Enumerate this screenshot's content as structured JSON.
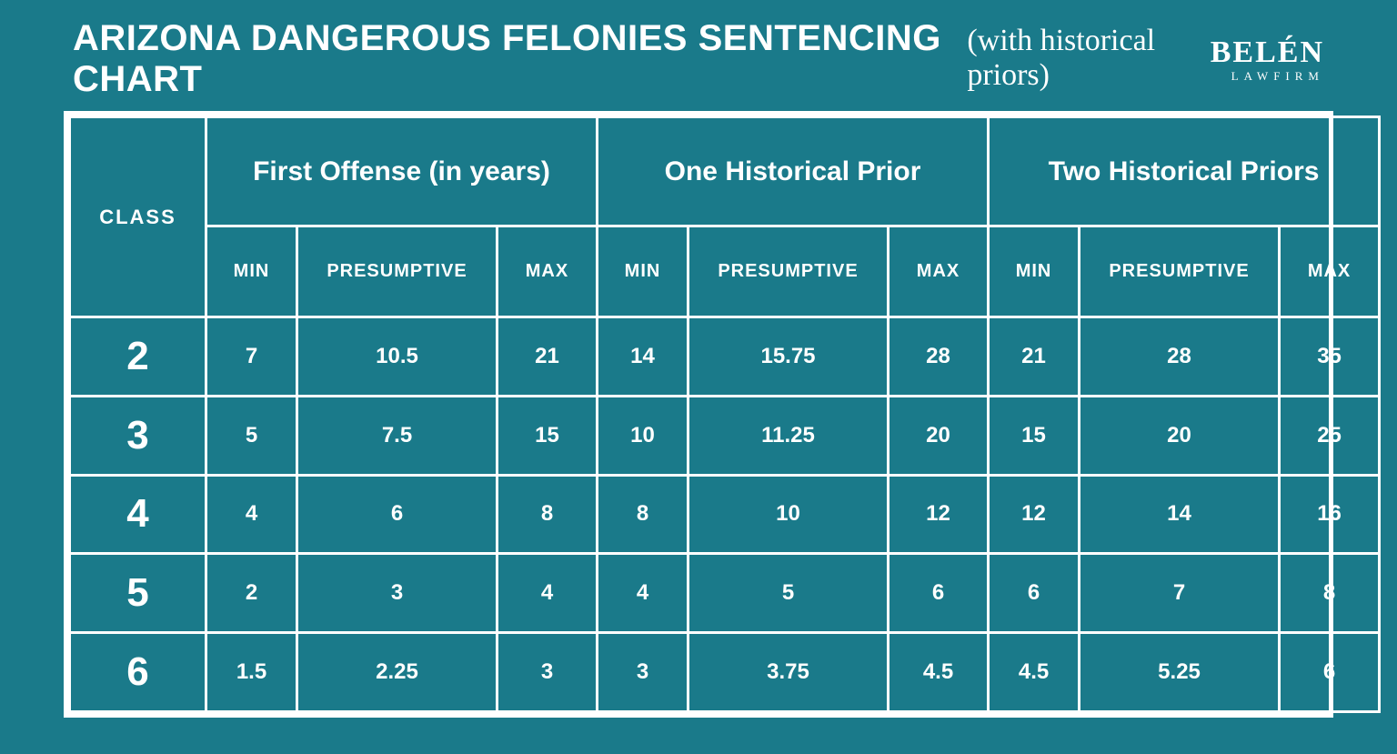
{
  "header": {
    "title": "ARIZONA DANGEROUS FELONIES SENTENCING CHART",
    "subtitle": "(with historical priors)",
    "logo_top": "BELÉN",
    "logo_bottom": "LAWFIRM"
  },
  "table": {
    "class_label": "CLASS",
    "groups": [
      "First Offense (in years)",
      "One Historical Prior",
      "Two Historical Priors"
    ],
    "sub_headers": [
      "MIN",
      "PRESUMPTIVE",
      "MAX"
    ],
    "rows": [
      {
        "class": "2",
        "cells": [
          "7",
          "10.5",
          "21",
          "14",
          "15.75",
          "28",
          "21",
          "28",
          "35"
        ]
      },
      {
        "class": "3",
        "cells": [
          "5",
          "7.5",
          "15",
          "10",
          "11.25",
          "20",
          "15",
          "20",
          "25"
        ]
      },
      {
        "class": "4",
        "cells": [
          "4",
          "6",
          "8",
          "8",
          "10",
          "12",
          "12",
          "14",
          "16"
        ]
      },
      {
        "class": "5",
        "cells": [
          "2",
          "3",
          "4",
          "4",
          "5",
          "6",
          "6",
          "7",
          "8"
        ]
      },
      {
        "class": "6",
        "cells": [
          "1.5",
          "2.25",
          "3",
          "3",
          "3.75",
          "4.5",
          "4.5",
          "5.25",
          "6"
        ]
      }
    ]
  },
  "style": {
    "background_color": "#1a7a8a",
    "border_color": "#ffffff",
    "text_color": "#ffffff",
    "title_fontsize": 40,
    "subtitle_fontsize": 34,
    "group_header_fontsize": 30,
    "sub_header_fontsize": 20,
    "class_cell_fontsize": 44,
    "value_fontsize": 24
  }
}
